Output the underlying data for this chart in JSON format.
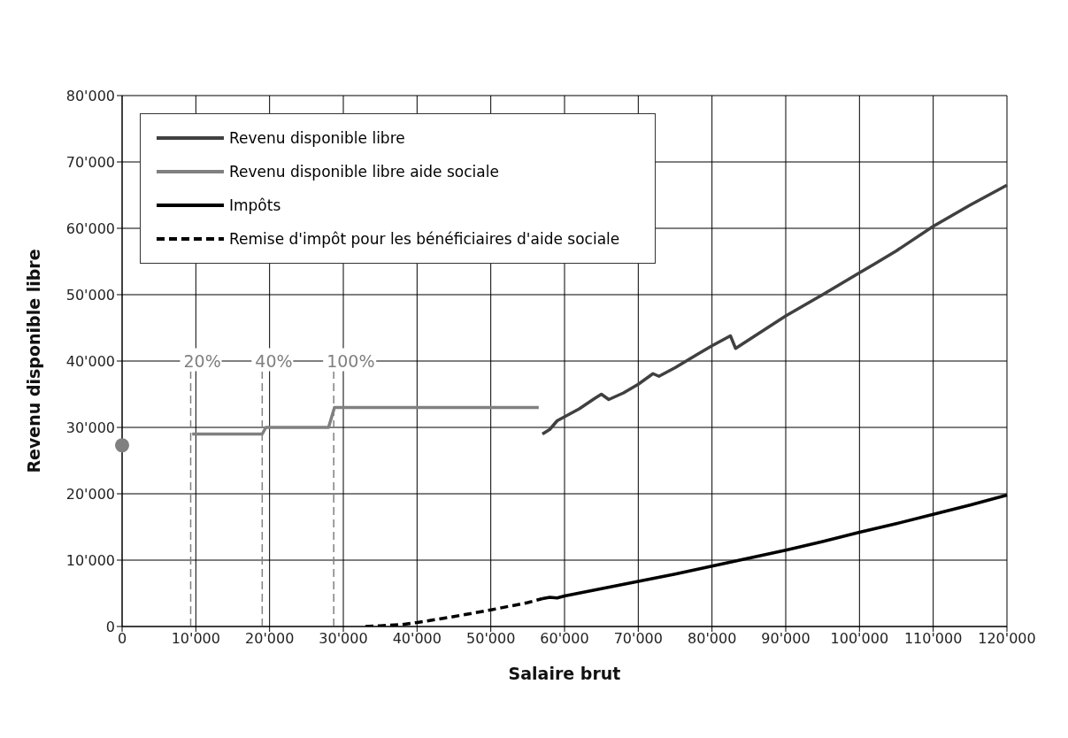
{
  "chart_data": {
    "type": "line",
    "xlabel": "Salaire brut",
    "ylabel": "Revenu disponible libre",
    "xlim": [
      0,
      120000
    ],
    "ylim": [
      0,
      80000
    ],
    "xticks": [
      0,
      {
        "value": 10000,
        "label": "10'000"
      },
      {
        "value": 20000,
        "label": "20'000"
      },
      {
        "value": 30000,
        "label": "30'000"
      },
      {
        "value": 40000,
        "label": "40'000"
      },
      {
        "value": 50000,
        "label": "50'000"
      },
      {
        "value": 60000,
        "label": "60'000"
      },
      {
        "value": 70000,
        "label": "70'000"
      },
      {
        "value": 80000,
        "label": "80'000"
      },
      {
        "value": 90000,
        "label": "90'000"
      },
      {
        "value": 100000,
        "label": "100'000"
      },
      {
        "value": 110000,
        "label": "110'000"
      },
      {
        "value": 120000,
        "label": "120'000"
      }
    ],
    "yticks": [
      0,
      {
        "value": 10000,
        "label": "10'000"
      },
      {
        "value": 20000,
        "label": "20'000"
      },
      {
        "value": 30000,
        "label": "30'000"
      },
      {
        "value": 40000,
        "label": "40'000"
      },
      {
        "value": 50000,
        "label": "50'000"
      },
      {
        "value": 60000,
        "label": "60'000"
      },
      {
        "value": 70000,
        "label": "70'000"
      },
      {
        "value": 80000,
        "label": "80'000"
      }
    ],
    "grid": true,
    "legend": "top left",
    "series": [
      {
        "name": "Revenu disponible libre",
        "color": "#404040",
        "x": [
          57000,
          58000,
          59000,
          60000,
          62000,
          64000,
          65000,
          66000,
          68000,
          70000,
          72000,
          72800,
          75000,
          78000,
          80000,
          82500,
          83200,
          85000,
          90000,
          95000,
          100000,
          102000,
          105000,
          110000,
          115000,
          120000
        ],
        "values": [
          29000,
          29700,
          31000,
          31600,
          32800,
          34300,
          35000,
          34200,
          35200,
          36500,
          38100,
          37700,
          39000,
          41000,
          42300,
          43800,
          41900,
          43200,
          46800,
          50000,
          53300,
          54600,
          56600,
          60300,
          63500,
          66500
        ]
      },
      {
        "name": "Revenu disponible libre aide sociale",
        "color": "#808080",
        "x": [
          9500,
          19000,
          19500,
          28000,
          28800,
          56500
        ],
        "values": [
          29000,
          29000,
          30000,
          30000,
          33000,
          33000
        ]
      },
      {
        "type": "scatter",
        "color": "#808080",
        "marker": "circle",
        "x": [
          0
        ],
        "values": [
          27300
        ]
      },
      {
        "name": "Impôts",
        "color": "#000000",
        "x": [
          57000,
          58000,
          59000,
          60000,
          65000,
          70000,
          75000,
          80000,
          85000,
          90000,
          95000,
          100000,
          105000,
          110000,
          115000,
          120000
        ],
        "values": [
          4200,
          4400,
          4300,
          4600,
          5700,
          6800,
          7900,
          9100,
          10300,
          11500,
          12800,
          14200,
          15500,
          16900,
          18300,
          19800
        ]
      },
      {
        "name": "Remise d'impôt pour les bénéficiaires d'aide sociale",
        "line_style": "dashed",
        "color": "#000000",
        "x": [
          33000,
          35000,
          38000,
          40000,
          45000,
          50000,
          55000,
          57000
        ],
        "values": [
          0,
          100,
          300,
          600,
          1500,
          2500,
          3600,
          4200
        ]
      }
    ],
    "ref_lines": [
      {
        "axis": "x",
        "value": 9300,
        "color": "#808080",
        "line_style": "dashed"
      },
      {
        "axis": "x",
        "value": 19000,
        "color": "#808080",
        "line_style": "dashed"
      },
      {
        "axis": "x",
        "value": 28700,
        "color": "#808080",
        "line_style": "dashed"
      }
    ],
    "annotations": [
      {
        "text": "20%",
        "x": 9300,
        "y": 39000
      },
      {
        "text": "40%",
        "x": 19000,
        "y": 39000
      },
      {
        "text": "100%",
        "x": 28700,
        "y": 39000
      }
    ]
  }
}
